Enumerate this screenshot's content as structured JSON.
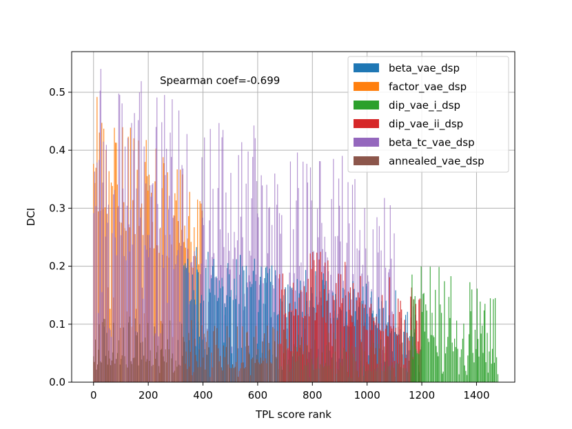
{
  "chart_data": {
    "type": "bar",
    "title": "",
    "xlabel": "TPL score rank",
    "ylabel": "DCI",
    "xlim": [
      -80,
      1540
    ],
    "ylim": [
      0,
      0.57
    ],
    "x_ticks": [
      0,
      200,
      400,
      600,
      800,
      1000,
      1200,
      1400
    ],
    "x_tick_labels": [
      "0",
      "200",
      "400",
      "600",
      "800",
      "1000",
      "1200",
      "1400"
    ],
    "y_ticks": [
      0.0,
      0.1,
      0.2,
      0.3,
      0.4,
      0.5
    ],
    "y_tick_labels": [
      "0.0",
      "0.1",
      "0.2",
      "0.3",
      "0.4",
      "0.5"
    ],
    "grid": true,
    "legend_position": "top-right",
    "annotation": "Spearman coef=-0.699",
    "series": [
      {
        "name": "beta_vae_dsp",
        "color": "#1f77b4",
        "segments": [
          {
            "x_start": 330,
            "x_end": 1180,
            "peak_max": 0.24,
            "baseline": 0.14
          }
        ]
      },
      {
        "name": "factor_vae_dsp",
        "color": "#ff7f0e",
        "segments": [
          {
            "x_start": 0,
            "x_end": 400,
            "peak_max": 0.51,
            "baseline": 0.3
          }
        ]
      },
      {
        "name": "dip_vae_i_dsp",
        "color": "#2ca02c",
        "segments": [
          {
            "x_start": 1160,
            "x_end": 1480,
            "peak_max": 0.23,
            "baseline": 0.05
          }
        ]
      },
      {
        "name": "dip_vae_ii_dsp",
        "color": "#d62728",
        "segments": [
          {
            "x_start": 680,
            "x_end": 1200,
            "peak_max": 0.25,
            "baseline": 0.12
          }
        ]
      },
      {
        "name": "beta_tc_vae_dsp",
        "color": "#9467bd",
        "segments": [
          {
            "x_start": 0,
            "x_end": 1100,
            "peak_max": 0.55,
            "baseline": 0.22
          }
        ]
      },
      {
        "name": "annealed_vae_dsp",
        "color": "#8c564b",
        "segments": [
          {
            "x_start": 0,
            "x_end": 1200,
            "peak_max": 0.12,
            "baseline": 0.03
          }
        ]
      }
    ]
  }
}
